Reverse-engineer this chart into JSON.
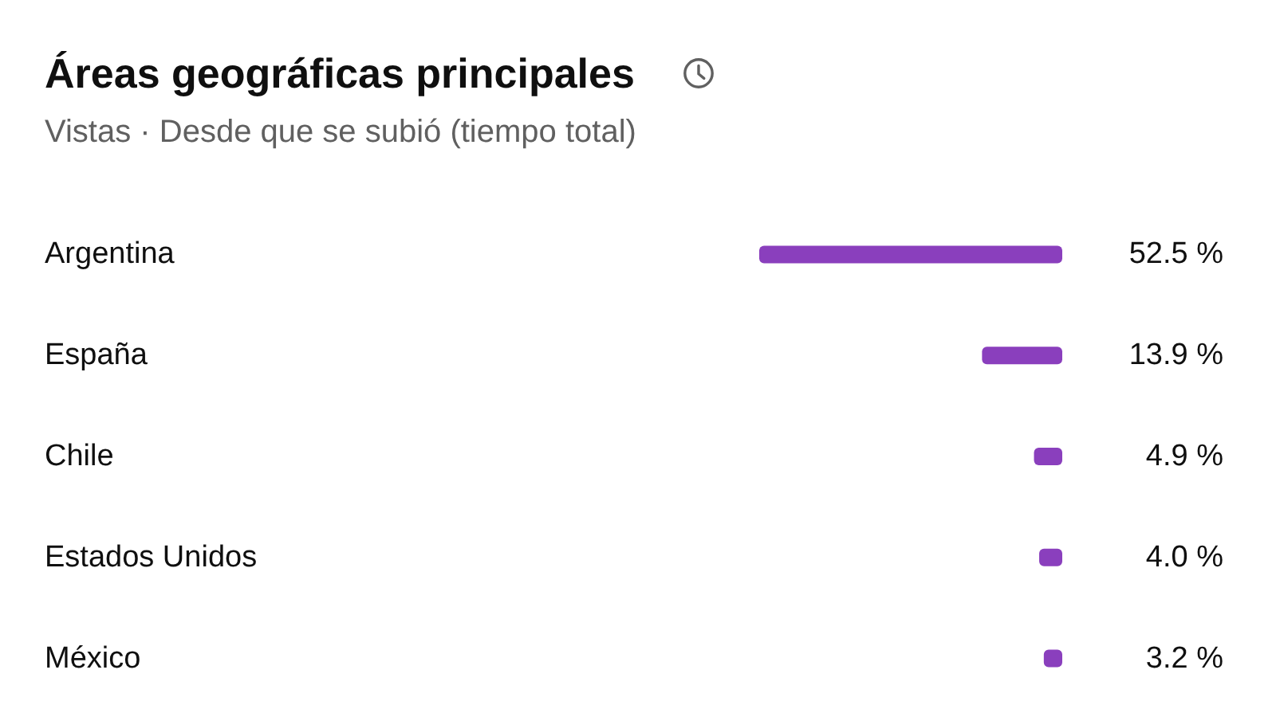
{
  "chart_data": {
    "type": "bar",
    "orientation": "horizontal",
    "title": "Áreas geográficas principales",
    "subtitle": "Vistas · Desde que se subió (tiempo total)",
    "categories": [
      "Argentina",
      "España",
      "Chile",
      "Estados Unidos",
      "México"
    ],
    "series": [
      {
        "color": "#8a3fbd",
        "values": [
          52.5,
          13.9,
          4.9,
          4.0,
          3.2
        ],
        "value_labels": [
          "52.5 %",
          "13.9 %",
          "4.9 %",
          "4.0 %",
          "3.2 %"
        ]
      }
    ],
    "xlim": [
      52.5,
      0
    ],
    "tick_labels": "y",
    "grid": false
  }
}
